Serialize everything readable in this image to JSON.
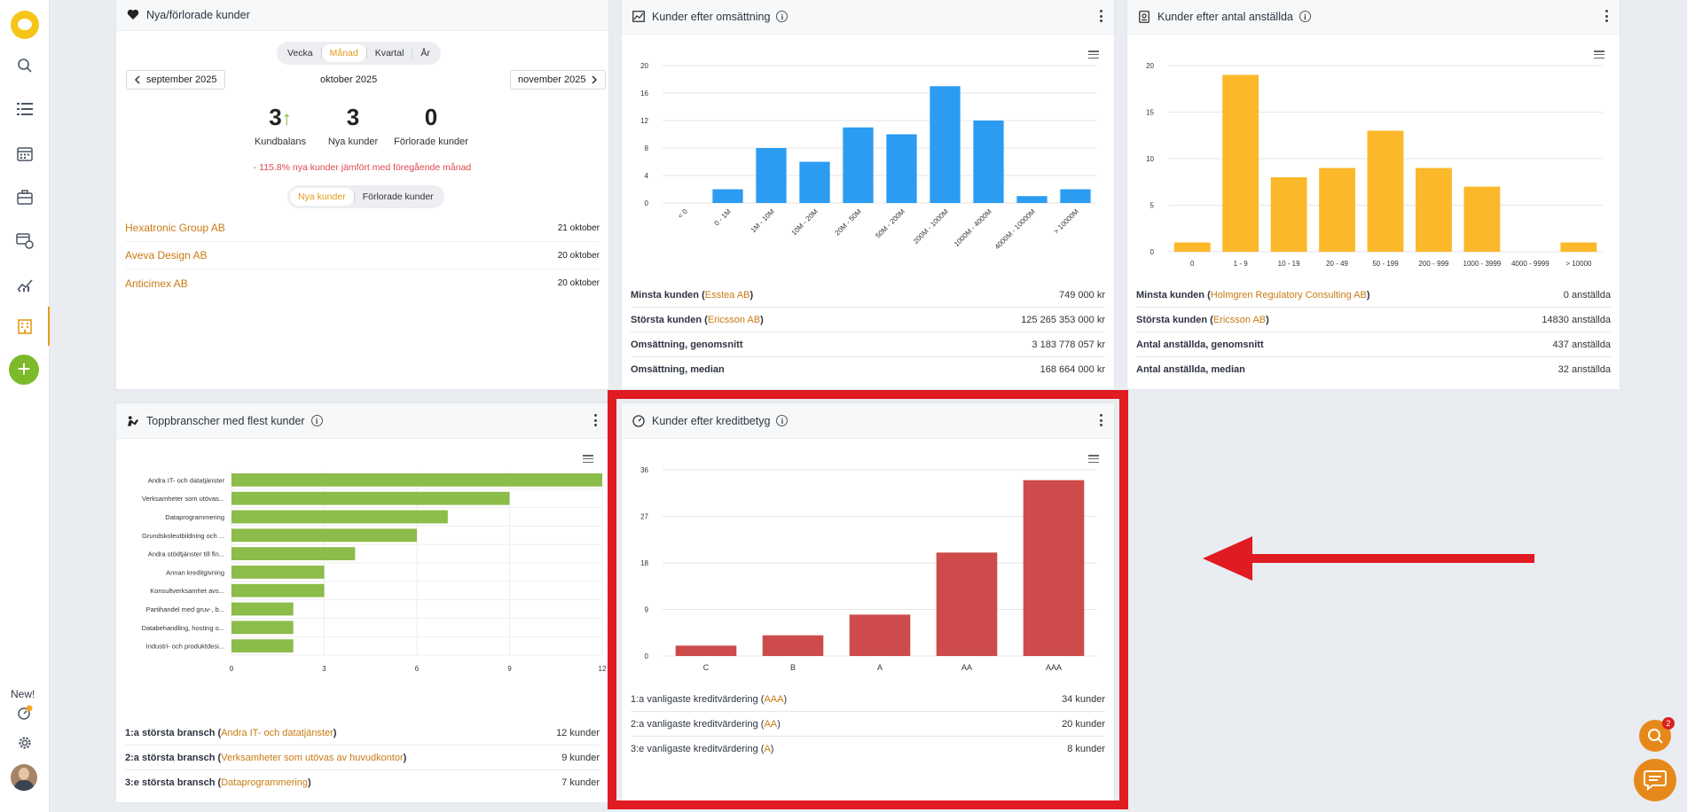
{
  "rail": {
    "new_label": "New!"
  },
  "new_lost": {
    "title": "Nya/förlorade kunder",
    "periods": [
      "Vecka",
      "Månad",
      "Kvartal",
      "År"
    ],
    "selected_period": "Månad",
    "prev": "september 2025",
    "current": "oktober 2025",
    "next": "november 2025",
    "stats": [
      {
        "value": "3",
        "label": "Kundbalans"
      },
      {
        "value": "3",
        "label": "Nya kunder"
      },
      {
        "value": "0",
        "label": "Förlorade kunder"
      }
    ],
    "comparison": "- 115.8% nya kunder jämfört med föregående månad",
    "tabs": [
      "Nya kunder",
      "Förlorade kunder"
    ],
    "customers": [
      {
        "name": "Hexatronic Group AB",
        "date": "21 oktober"
      },
      {
        "name": "Aveva Design AB",
        "date": "20 oktober"
      },
      {
        "name": "Anticimex AB",
        "date": "20 oktober"
      }
    ]
  },
  "revenue": {
    "title": "Kunder efter omsättning",
    "summary": [
      {
        "label": "Minsta kunden",
        "link": "Esstea AB",
        "value": "749 000 kr"
      },
      {
        "label": "Största kunden",
        "link": "Ericsson AB",
        "value": "125 265 353 000 kr"
      },
      {
        "label": "Omsättning, genomsnitt",
        "link": "",
        "value": "3 183 778 057 kr"
      },
      {
        "label": "Omsättning, median",
        "link": "",
        "value": "168 664 000 kr"
      }
    ]
  },
  "employees": {
    "title": "Kunder efter antal anställda",
    "summary": [
      {
        "label": "Minsta kunden",
        "link": "Holmgren Regulatory Consulting AB",
        "value": "0 anställda"
      },
      {
        "label": "Största kunden",
        "link": "Ericsson AB",
        "value": "14830 anställda"
      },
      {
        "label": "Antal anställda, genomsnitt",
        "link": "",
        "value": "437 anställda"
      },
      {
        "label": "Antal anställda, median",
        "link": "",
        "value": "32 anställda"
      }
    ]
  },
  "industries": {
    "title": "Toppbranscher med flest kunder",
    "summary": [
      {
        "label": "1:a största bransch",
        "link": "Andra IT- och datatjänster",
        "value": "12 kunder"
      },
      {
        "label": "2:a största bransch",
        "link": "Verksamheter som utövas av huvudkontor",
        "value": "9 kunder"
      },
      {
        "label": "3:e största bransch",
        "link": "Dataprogrammering",
        "value": "7 kunder"
      }
    ]
  },
  "credit": {
    "title": "Kunder efter kreditbetyg",
    "summary": [
      {
        "label": "1:a vanligaste kreditvärdering",
        "link": "AAA",
        "value": "34 kunder"
      },
      {
        "label": "2:a vanligaste kreditvärdering",
        "link": "AA",
        "value": "20 kunder"
      },
      {
        "label": "3:e vanligaste kreditvärdering",
        "link": "A",
        "value": "8 kunder"
      }
    ]
  },
  "chat": {
    "badge": "2"
  },
  "chart_data": [
    {
      "type": "bar",
      "name": "revenue",
      "categories": [
        "< 0",
        "0 - 1M",
        "1M - 10M",
        "10M - 20M",
        "20M - 50M",
        "50M - 200M",
        "200M - 1000M",
        "1000M - 4000M",
        "4000M - 10000M",
        "> 10000M"
      ],
      "values": [
        0,
        2,
        8,
        6,
        11,
        10,
        17,
        12,
        1,
        2
      ],
      "ylim": [
        0,
        20
      ],
      "yticks": [
        0,
        4,
        8,
        12,
        16,
        20
      ],
      "color": "#2b9cf2"
    },
    {
      "type": "bar",
      "name": "employees",
      "categories": [
        "0",
        "1 - 9",
        "10 - 19",
        "20 - 49",
        "50 - 199",
        "200 - 999",
        "1000 - 3999",
        "4000 - 9999",
        "> 10000"
      ],
      "values": [
        1,
        19,
        8,
        9,
        13,
        9,
        7,
        0,
        1
      ],
      "ylim": [
        0,
        20
      ],
      "yticks": [
        0,
        5,
        10,
        15,
        20
      ],
      "color": "#fbb82a"
    },
    {
      "type": "bar",
      "orientation": "horizontal",
      "name": "industries",
      "categories": [
        "Andra IT- och datatjänster",
        "Verksamheter som utövas...",
        "Dataprogrammering",
        "Grundskoleutbildning och ...",
        "Andra stödtjänster till fin...",
        "Annan kreditgivning",
        "Konsultverksamhet avs...",
        "Partihandel med gruv-, b...",
        "Databehandling, hosting o...",
        "Industri- och produktdesi..."
      ],
      "values": [
        12,
        9,
        7,
        6,
        4,
        3,
        3,
        2,
        2,
        2
      ],
      "xlim": [
        0,
        12
      ],
      "xticks": [
        0,
        3,
        6,
        9,
        12
      ],
      "color": "#8cbc4a"
    },
    {
      "type": "bar",
      "name": "credit",
      "categories": [
        "C",
        "B",
        "A",
        "AA",
        "AAA"
      ],
      "values": [
        2,
        4,
        8,
        20,
        34
      ],
      "ylim": [
        0,
        36
      ],
      "yticks": [
        0,
        9,
        18,
        27,
        36
      ],
      "color": "#cd4b4b"
    }
  ]
}
